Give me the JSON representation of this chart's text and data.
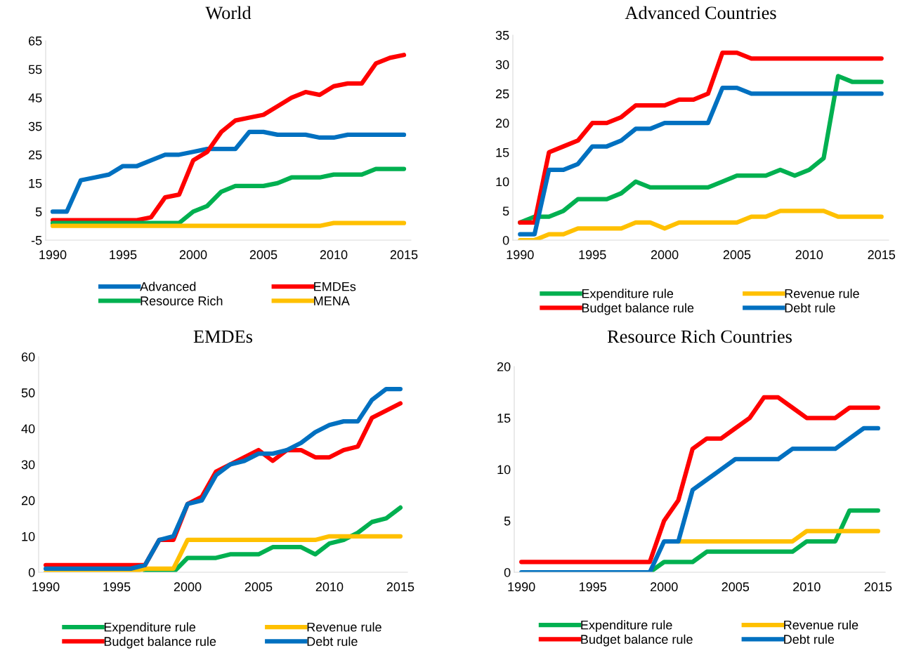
{
  "chart_data": [
    {
      "type": "line",
      "title": "World",
      "x": [
        1990,
        1991,
        1992,
        1993,
        1994,
        1995,
        1996,
        1997,
        1998,
        1999,
        2000,
        2001,
        2002,
        2003,
        2004,
        2005,
        2006,
        2007,
        2008,
        2009,
        2010,
        2011,
        2012,
        2013,
        2014,
        2015
      ],
      "series": [
        {
          "name": "Advanced",
          "color": "#0070c0",
          "values": [
            5,
            5,
            16,
            17,
            18,
            21,
            21,
            23,
            25,
            25,
            26,
            27,
            27,
            27,
            33,
            33,
            32,
            32,
            32,
            31,
            31,
            32,
            32,
            32,
            32,
            32
          ]
        },
        {
          "name": "EMDEs",
          "color": "#ff0000",
          "values": [
            2,
            2,
            2,
            2,
            2,
            2,
            2,
            3,
            10,
            11,
            23,
            26,
            33,
            37,
            38,
            39,
            42,
            45,
            47,
            46,
            49,
            50,
            50,
            57,
            59,
            60
          ]
        },
        {
          "name": "Resource Rich",
          "color": "#00b050",
          "values": [
            1,
            1,
            1,
            1,
            1,
            1,
            1,
            1,
            1,
            1,
            5,
            7,
            12,
            14,
            14,
            14,
            15,
            17,
            17,
            17,
            18,
            18,
            18,
            20,
            20,
            20
          ]
        },
        {
          "name": "MENA",
          "color": "#ffc000",
          "values": [
            0,
            0,
            0,
            0,
            0,
            0,
            0,
            0,
            0,
            0,
            0,
            0,
            0,
            0,
            0,
            0,
            0,
            0,
            0,
            0,
            1,
            1,
            1,
            1,
            1,
            1
          ]
        }
      ],
      "xlim": [
        1989.5,
        2015.5
      ],
      "xticks": [
        1990,
        1995,
        2000,
        2005,
        2010,
        2015
      ],
      "ylim": [
        -5,
        65
      ],
      "yticks": [
        -5,
        5,
        15,
        25,
        35,
        45,
        55,
        65
      ],
      "grid": false,
      "legend": "bottom",
      "marker": "none",
      "line_style": "solid"
    },
    {
      "type": "line",
      "title": "Advanced Countries",
      "x": [
        1990,
        1991,
        1992,
        1993,
        1994,
        1995,
        1996,
        1997,
        1998,
        1999,
        2000,
        2001,
        2002,
        2003,
        2004,
        2005,
        2006,
        2007,
        2008,
        2009,
        2010,
        2011,
        2012,
        2013,
        2014,
        2015
      ],
      "series": [
        {
          "name": "Expenditure rule",
          "color": "#00b050",
          "values": [
            3,
            4,
            4,
            5,
            7,
            7,
            7,
            8,
            10,
            9,
            9,
            9,
            9,
            9,
            10,
            11,
            11,
            11,
            12,
            11,
            12,
            14,
            28,
            27,
            27,
            27
          ]
        },
        {
          "name": "Revenue rule",
          "color": "#ffc000",
          "values": [
            0,
            0,
            1,
            1,
            2,
            2,
            2,
            2,
            3,
            3,
            2,
            3,
            3,
            3,
            3,
            3,
            4,
            4,
            5,
            5,
            5,
            5,
            4,
            4,
            4,
            4
          ]
        },
        {
          "name": "Budget balance rule",
          "color": "#ff0000",
          "values": [
            3,
            3,
            15,
            16,
            17,
            20,
            20,
            21,
            23,
            23,
            23,
            24,
            24,
            25,
            32,
            32,
            31,
            31,
            31,
            31,
            31,
            31,
            31,
            31,
            31,
            31
          ]
        },
        {
          "name": "Debt rule",
          "color": "#0070c0",
          "values": [
            1,
            1,
            12,
            12,
            13,
            16,
            16,
            17,
            19,
            19,
            20,
            20,
            20,
            20,
            26,
            26,
            25,
            25,
            25,
            25,
            25,
            25,
            25,
            25,
            25,
            25
          ]
        }
      ],
      "xlim": [
        1989.5,
        2015.5
      ],
      "xticks": [
        1990,
        1995,
        2000,
        2005,
        2010,
        2015
      ],
      "ylim": [
        0,
        35
      ],
      "yticks": [
        0,
        5,
        10,
        15,
        20,
        25,
        30,
        35
      ],
      "grid": false,
      "legend": "bottom",
      "marker": "none",
      "line_style": "solid"
    },
    {
      "type": "line",
      "title": "EMDEs",
      "x": [
        1990,
        1991,
        1992,
        1993,
        1994,
        1995,
        1996,
        1997,
        1998,
        1999,
        2000,
        2001,
        2002,
        2003,
        2004,
        2005,
        2006,
        2007,
        2008,
        2009,
        2010,
        2011,
        2012,
        2013,
        2014,
        2015
      ],
      "series": [
        {
          "name": "Expenditure rule",
          "color": "#00b050",
          "values": [
            null,
            null,
            null,
            null,
            null,
            null,
            null,
            0,
            0,
            0,
            4,
            4,
            4,
            5,
            5,
            5,
            7,
            7,
            7,
            5,
            8,
            9,
            11,
            14,
            15,
            18
          ]
        },
        {
          "name": "Revenue rule",
          "color": "#ffc000",
          "values": [
            0,
            0,
            0,
            0,
            0,
            0,
            0,
            1,
            1,
            1,
            9,
            9,
            9,
            9,
            9,
            9,
            9,
            9,
            9,
            9,
            10,
            10,
            10,
            10,
            10,
            10
          ]
        },
        {
          "name": "Budget balance rule",
          "color": "#ff0000",
          "values": [
            2,
            2,
            2,
            2,
            2,
            2,
            2,
            2,
            9,
            9,
            19,
            21,
            28,
            30,
            32,
            34,
            31,
            34,
            34,
            32,
            32,
            34,
            35,
            43,
            45,
            47
          ]
        },
        {
          "name": "Debt rule",
          "color": "#0070c0",
          "values": [
            1,
            1,
            1,
            1,
            1,
            1,
            1,
            2,
            9,
            10,
            19,
            20,
            27,
            30,
            31,
            33,
            33,
            34,
            36,
            39,
            41,
            42,
            42,
            48,
            51,
            51
          ]
        }
      ],
      "xlim": [
        1989.5,
        2015.5
      ],
      "xticks": [
        1990,
        1995,
        2000,
        2005,
        2010,
        2015
      ],
      "ylim": [
        0,
        60
      ],
      "yticks": [
        0,
        10,
        20,
        30,
        40,
        50,
        60
      ],
      "grid": false,
      "legend": "bottom",
      "marker": "none",
      "line_style": "solid"
    },
    {
      "type": "line",
      "title": "Resource Rich Countries",
      "x": [
        1990,
        1991,
        1992,
        1993,
        1994,
        1995,
        1996,
        1997,
        1998,
        1999,
        2000,
        2001,
        2002,
        2003,
        2004,
        2005,
        2006,
        2007,
        2008,
        2009,
        2010,
        2011,
        2012,
        2013,
        2014,
        2015
      ],
      "series": [
        {
          "name": "Expenditure rule",
          "color": "#00b050",
          "values": [
            null,
            null,
            null,
            null,
            null,
            null,
            null,
            null,
            null,
            0,
            1,
            1,
            1,
            2,
            2,
            2,
            2,
            2,
            2,
            2,
            3,
            3,
            3,
            6,
            6,
            6
          ]
        },
        {
          "name": "Revenue rule",
          "color": "#ffc000",
          "values": [
            null,
            null,
            null,
            null,
            null,
            null,
            null,
            null,
            null,
            null,
            null,
            3,
            3,
            3,
            3,
            3,
            3,
            3,
            3,
            3,
            4,
            4,
            4,
            4,
            4,
            4
          ]
        },
        {
          "name": "Budget balance rule",
          "color": "#ff0000",
          "values": [
            1,
            1,
            1,
            1,
            1,
            1,
            1,
            1,
            1,
            1,
            5,
            7,
            12,
            13,
            13,
            14,
            15,
            17,
            17,
            16,
            15,
            15,
            15,
            16,
            16,
            16
          ]
        },
        {
          "name": "Debt rule",
          "color": "#0070c0",
          "values": [
            0,
            0,
            0,
            0,
            0,
            0,
            0,
            0,
            0,
            0,
            3,
            3,
            8,
            9,
            10,
            11,
            11,
            11,
            11,
            12,
            12,
            12,
            12,
            13,
            14,
            14
          ]
        }
      ],
      "xlim": [
        1989.5,
        2015.5
      ],
      "xticks": [
        1990,
        1995,
        2000,
        2005,
        2010,
        2015
      ],
      "ylim": [
        0,
        20
      ],
      "yticks": [
        0,
        5,
        10,
        15,
        20
      ],
      "grid": false,
      "legend": "bottom",
      "marker": "none",
      "line_style": "solid"
    }
  ]
}
